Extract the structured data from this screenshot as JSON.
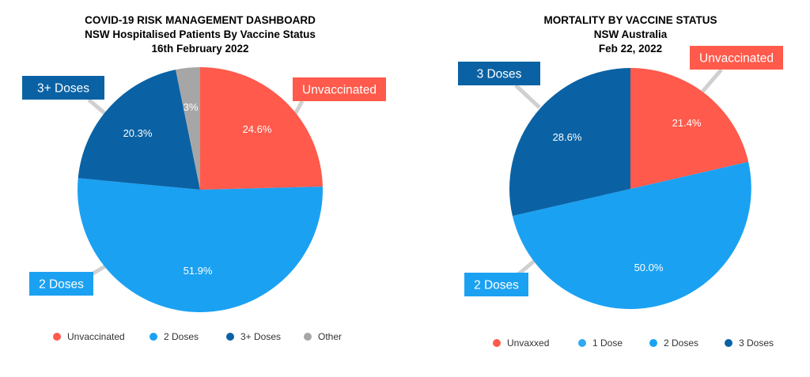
{
  "colors": {
    "unvaccinated": "#FF5A4B",
    "two_doses": "#1BA1F2",
    "three_doses": "#0A62A4",
    "one_dose": "#2FA9F5",
    "other": "#A6A6A6",
    "leader_line": "#D0D0D0"
  },
  "chart_data": [
    {
      "type": "pie",
      "title_lines": [
        "COVID-19 RISK MANAGEMENT DASHBOARD",
        "NSW Hospitalised Patients By Vaccine Status",
        "16th February 2022"
      ],
      "slices": [
        {
          "name": "Unvaccinated",
          "value": 24.6,
          "label": "24.6%",
          "color_key": "unvaccinated",
          "callout": "Unvaccinated"
        },
        {
          "name": "2 Doses",
          "value": 51.9,
          "label": "51.9%",
          "color_key": "two_doses",
          "callout": "2 Doses"
        },
        {
          "name": "3+ Doses",
          "value": 20.3,
          "label": "20.3%",
          "color_key": "three_doses",
          "callout": "3+ Doses"
        },
        {
          "name": "Other",
          "value": 3.2,
          "label": "3%",
          "color_key": "other",
          "callout": ""
        }
      ],
      "legend": [
        {
          "name": "Unvaccinated",
          "color_key": "unvaccinated"
        },
        {
          "name": "2 Doses",
          "color_key": "two_doses"
        },
        {
          "name": "3+ Doses",
          "color_key": "three_doses"
        },
        {
          "name": "Other",
          "color_key": "other"
        }
      ],
      "legend_position": "bottom"
    },
    {
      "type": "pie",
      "title_lines": [
        "MORTALITY BY VACCINE STATUS",
        "NSW Australia",
        "Feb 22, 2022"
      ],
      "slices": [
        {
          "name": "Unvaxxed",
          "value": 21.4,
          "label": "21.4%",
          "color_key": "unvaccinated",
          "callout": "Unvaccinated"
        },
        {
          "name": "1 Dose",
          "value": 0,
          "label": "",
          "color_key": "one_dose",
          "callout": ""
        },
        {
          "name": "2 Doses",
          "value": 50.0,
          "label": "50.0%",
          "color_key": "two_doses",
          "callout": "2 Doses"
        },
        {
          "name": "3 Doses",
          "value": 28.6,
          "label": "28.6%",
          "color_key": "three_doses",
          "callout": "3 Doses"
        }
      ],
      "legend": [
        {
          "name": "Unvaxxed",
          "color_key": "unvaccinated"
        },
        {
          "name": "1 Dose",
          "color_key": "one_dose"
        },
        {
          "name": "2 Doses",
          "color_key": "two_doses"
        },
        {
          "name": "3 Doses",
          "color_key": "three_doses"
        }
      ],
      "legend_position": "bottom"
    }
  ]
}
